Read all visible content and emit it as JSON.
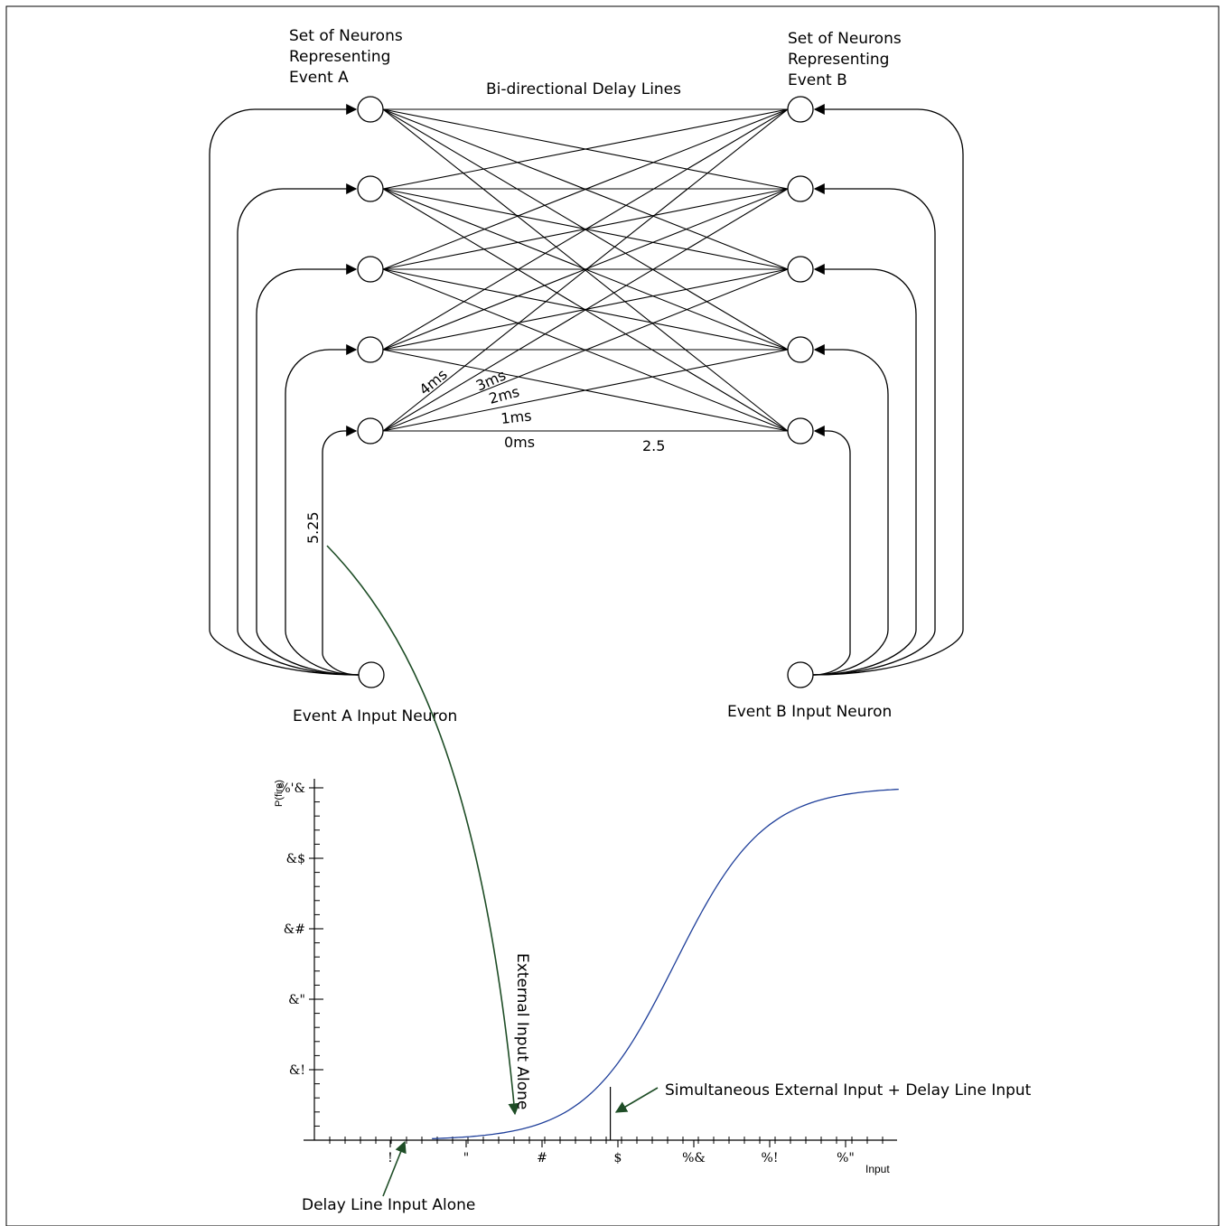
{
  "labels": {
    "group_a": [
      "Set of Neurons",
      "Representing",
      "Event A"
    ],
    "group_b": [
      "Set of Neurons",
      "Representing",
      "Event B"
    ],
    "delay_title": "Bi-directional Delay Lines",
    "input_a": "Event A Input Neuron",
    "input_b": "Event B Input Neuron",
    "delays": [
      "4ms",
      "3ms",
      "2ms",
      "1ms",
      "0ms"
    ],
    "value_right": "2.5",
    "value_left": "5.25",
    "external_alone": "External Input Alone",
    "simultaneous": "Simultaneous External Input + Delay Line Input",
    "delay_alone": "Delay Line Input Alone"
  },
  "chart_data": {
    "type": "line",
    "title": "",
    "xlabel": "Input",
    "ylabel": "P(fire)",
    "x_ticks": [
      "!",
      "\"",
      "#",
      "$",
      "%&",
      "%!",
      "%\""
    ],
    "y_ticks": [
      "&!",
      "&\"",
      "&#",
      "&$",
      "%'&"
    ],
    "series": [
      {
        "curve": "sigmoid",
        "x_range": [
          0,
          7.7
        ],
        "midpoint": 4.75,
        "steepness": 1.7,
        "ylim": [
          0,
          1
        ],
        "color": "#1f3f9a"
      }
    ],
    "markers": {
      "simultaneous_x": 3.9,
      "delay_alone_x": 1.2,
      "external_alone_x": 2.65
    }
  },
  "colors": {
    "arrow_green": "#1e4d26",
    "curve_blue": "#1f3f9a",
    "ink": "#000000"
  }
}
